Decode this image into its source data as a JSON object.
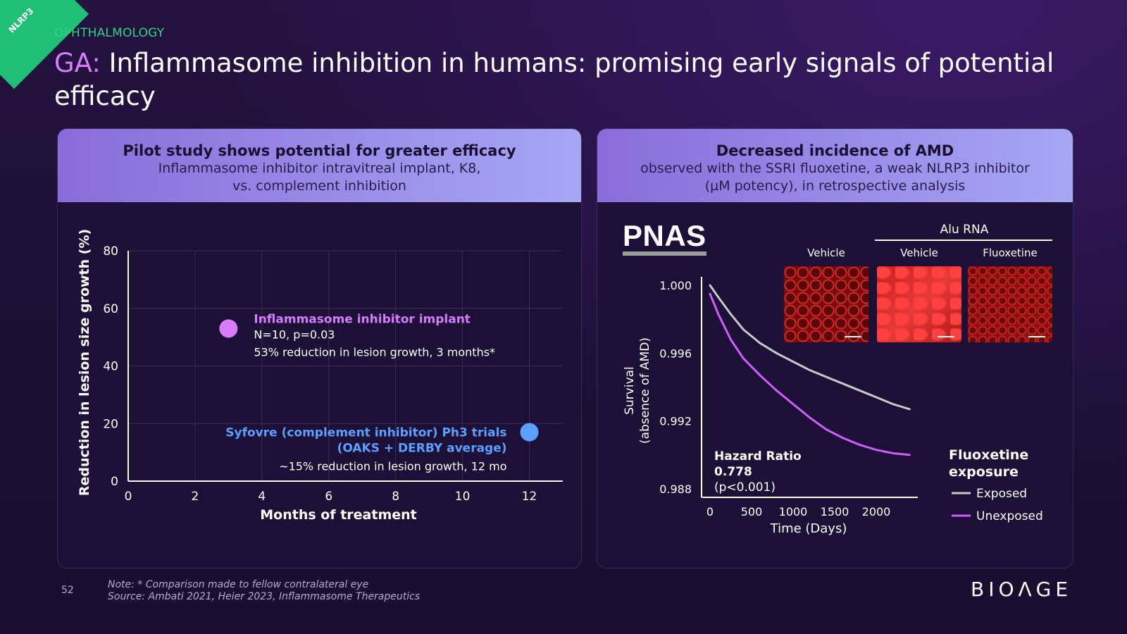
{
  "tag": "NLRP3",
  "kicker": "OPHTHALMOLOGY",
  "title": {
    "accent": "GA:",
    "text": " Inflammasome inhibition in humans: promising early signals of potential efficacy"
  },
  "left_panel": {
    "heading": "Pilot study shows potential for greater efficacy",
    "sub1": "Inflammasome inhibitor intravitreal implant, K8,",
    "sub2": "vs. complement inhibition"
  },
  "right_panel": {
    "heading": "Decreased incidence of AMD",
    "sub1": "observed with the SSRI fluoxetine, a weak NLRP3 inhibitor",
    "sub2": "(µM potency), in retrospective analysis"
  },
  "chart_data": [
    {
      "type": "scatter",
      "xlabel": "Months of treatment",
      "ylabel": "Reduction in lesion size growth (%)",
      "xlim": [
        0,
        13
      ],
      "ylim": [
        0,
        80
      ],
      "xticks": [
        "0",
        "2",
        "4",
        "6",
        "8",
        "10",
        "12"
      ],
      "yticks": [
        "0",
        "20",
        "40",
        "60",
        "80"
      ],
      "grid": true,
      "points": [
        {
          "name": "Inflammasome inhibitor implant",
          "x": 3,
          "y": 53,
          "color": "#d77bff",
          "lines": [
            "N=10, p=0.03",
            "53% reduction in lesion growth, 3 months*"
          ]
        },
        {
          "name": "Syfovre (complement inhibitor) Ph3 trials",
          "name2": "(OAKS + DERBY average)",
          "x": 12,
          "y": 17,
          "color": "#5aa0ff",
          "lines": [
            "~15% reduction in lesion growth, 12 mo"
          ]
        }
      ]
    },
    {
      "type": "line",
      "xlabel": "Time (Days)",
      "ylabel1": "Survival",
      "ylabel2": "(absence of AMD)",
      "xlim": [
        0,
        2500
      ],
      "ylim": [
        0.9875,
        1.0005
      ],
      "xticks": [
        "0",
        "500",
        "1000",
        "1500",
        "2000"
      ],
      "yticks": [
        "0.988",
        "0.992",
        "0.996",
        "1.000"
      ],
      "series": [
        {
          "name": "Exposed",
          "color": "#c9c9c9",
          "x": [
            0,
            100,
            250,
            400,
            600,
            800,
            1000,
            1200,
            1400,
            1600,
            1800,
            2000,
            2200,
            2400
          ],
          "y": [
            1.0,
            0.9993,
            0.9983,
            0.9974,
            0.9966,
            0.996,
            0.9955,
            0.995,
            0.9946,
            0.9942,
            0.9938,
            0.9934,
            0.993,
            0.9927
          ]
        },
        {
          "name": "Unexposed",
          "color": "#d25cff",
          "x": [
            0,
            100,
            250,
            400,
            600,
            800,
            1000,
            1200,
            1400,
            1600,
            1800,
            2000,
            2200,
            2400
          ],
          "y": [
            0.9995,
            0.9983,
            0.9968,
            0.9957,
            0.9947,
            0.9938,
            0.993,
            0.9922,
            0.9915,
            0.991,
            0.9906,
            0.9903,
            0.9901,
            0.99
          ]
        }
      ],
      "hazard": {
        "label": "Hazard Ratio",
        "value": "0.778",
        "p": "(p<0.001)"
      },
      "legend_title1": "Fluoxetine",
      "legend_title2": "exposure",
      "source_logo": "PNAS",
      "images": {
        "group_label": "Alu RNA",
        "labels": [
          "Vehicle",
          "Vehicle",
          "Fluoxetine"
        ]
      }
    }
  ],
  "footer": {
    "page": "52",
    "note": "Note: * Comparison made to fellow contralateral eye",
    "source": "Source: Ambati 2021, Heier 2023, Inflammasome Therapeutics",
    "logo": "BIOΛGE"
  }
}
